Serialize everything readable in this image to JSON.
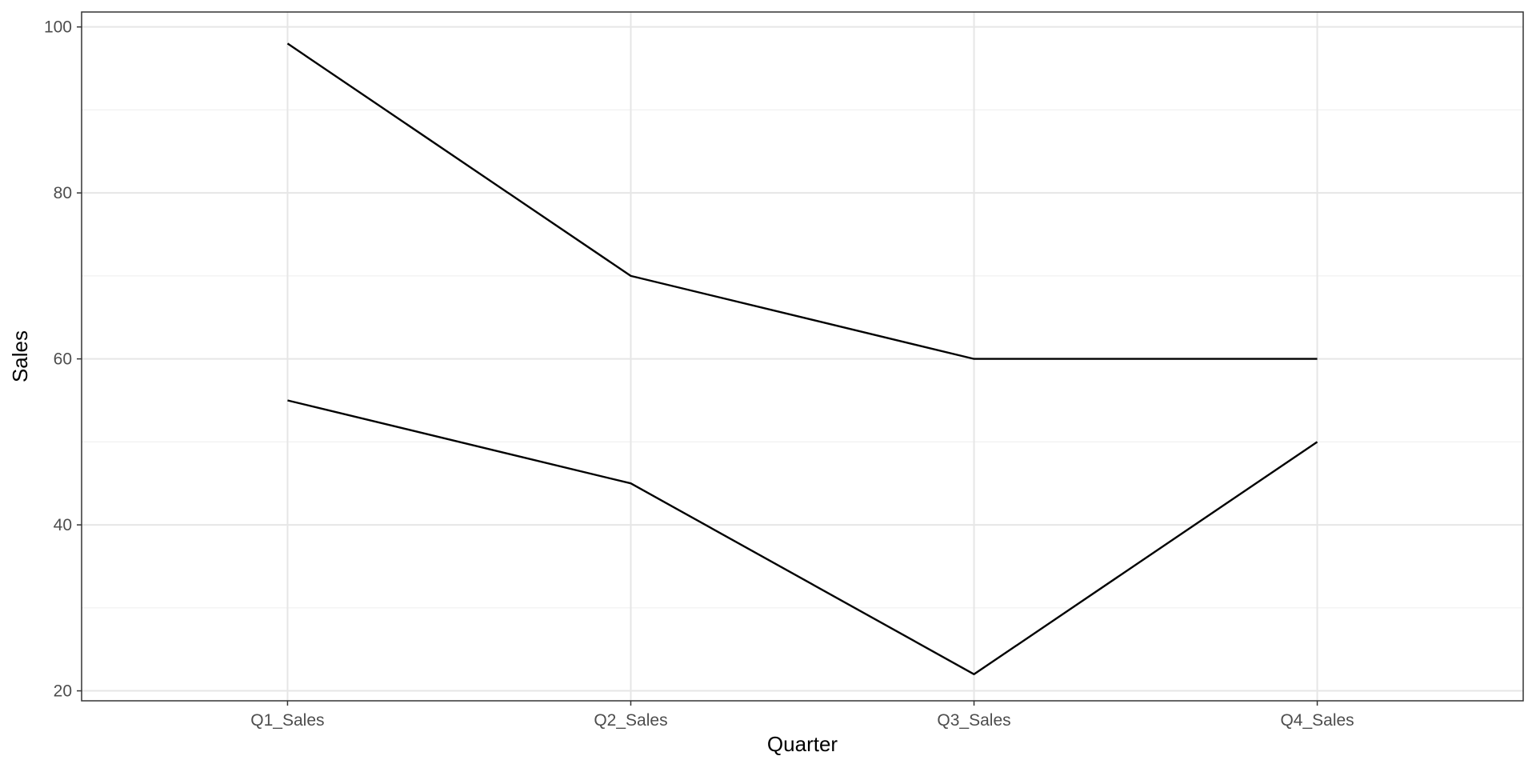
{
  "chart_data": {
    "type": "line",
    "title": "",
    "xlabel": "Quarter",
    "ylabel": "Sales",
    "categories": [
      "Q1_Sales",
      "Q2_Sales",
      "Q3_Sales",
      "Q4_Sales"
    ],
    "series": [
      {
        "values": [
          98,
          70,
          60,
          60
        ]
      },
      {
        "values": [
          55,
          45,
          22,
          50
        ]
      }
    ],
    "ylim": [
      18.8,
      101.8
    ],
    "yticks": [
      "20",
      "40",
      "60",
      "80",
      "100"
    ],
    "grid": true,
    "legend": "none",
    "colors": {
      "line": "#000000",
      "grid_major": "#e6e6e6",
      "grid_minor": "#f0f0f0",
      "panel_border": "#333333",
      "tick_text": "#4d4d4d"
    }
  }
}
